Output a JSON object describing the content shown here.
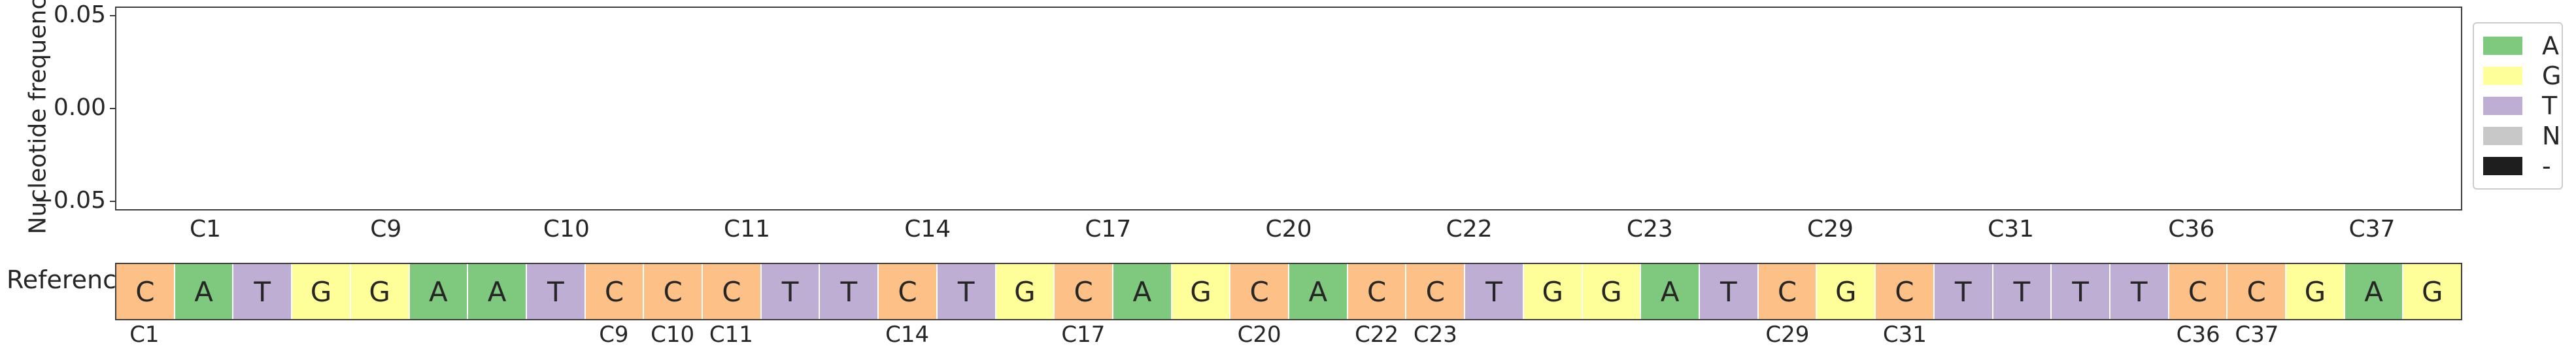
{
  "chart_data": {
    "type": "bar",
    "ylabel": "Nucleotide frequency",
    "ylim": [
      -0.055,
      0.055
    ],
    "yticks": [
      "0.05",
      "0.00",
      "−0.05"
    ],
    "ytick_values": [
      0.05,
      0.0,
      -0.05
    ],
    "xticks": [
      "C1",
      "C9",
      "C10",
      "C11",
      "C14",
      "C17",
      "C20",
      "C22",
      "C23",
      "C29",
      "C31",
      "C36",
      "C37"
    ],
    "series": [
      {
        "name": "A",
        "values": []
      },
      {
        "name": "G",
        "values": []
      },
      {
        "name": "T",
        "values": []
      },
      {
        "name": "N",
        "values": []
      },
      {
        "name": "-",
        "values": []
      }
    ],
    "legend": {
      "placement": "right",
      "entries": [
        {
          "label": "A",
          "color": "#7fc97f"
        },
        {
          "label": "G",
          "color": "#ffff99"
        },
        {
          "label": "T",
          "color": "#beaed4"
        },
        {
          "label": "N",
          "color": "#c8c8c8"
        },
        {
          "label": "-",
          "color": "#1e1e1e"
        }
      ]
    },
    "reference": {
      "label": "Reference",
      "sequence": [
        "C",
        "A",
        "T",
        "G",
        "G",
        "A",
        "A",
        "T",
        "C",
        "C",
        "C",
        "T",
        "T",
        "C",
        "T",
        "G",
        "C",
        "A",
        "G",
        "C",
        "A",
        "C",
        "C",
        "T",
        "G",
        "G",
        "A",
        "T",
        "C",
        "G",
        "C",
        "T",
        "T",
        "T",
        "T",
        "C",
        "C",
        "G",
        "A",
        "G"
      ],
      "colors": {
        "A": "#7fc97f",
        "G": "#ffff99",
        "T": "#beaed4",
        "C": "#fdc086"
      },
      "labels": [
        {
          "text": "C1",
          "index": 0
        },
        {
          "text": "C9",
          "index": 8
        },
        {
          "text": "C10",
          "index": 9
        },
        {
          "text": "C11",
          "index": 10
        },
        {
          "text": "C14",
          "index": 13
        },
        {
          "text": "C17",
          "index": 16
        },
        {
          "text": "C20",
          "index": 19
        },
        {
          "text": "C22",
          "index": 21
        },
        {
          "text": "C23",
          "index": 22
        },
        {
          "text": "C29",
          "index": 28
        },
        {
          "text": "C31",
          "index": 30
        },
        {
          "text": "C36",
          "index": 35
        },
        {
          "text": "C37",
          "index": 36
        }
      ]
    }
  }
}
